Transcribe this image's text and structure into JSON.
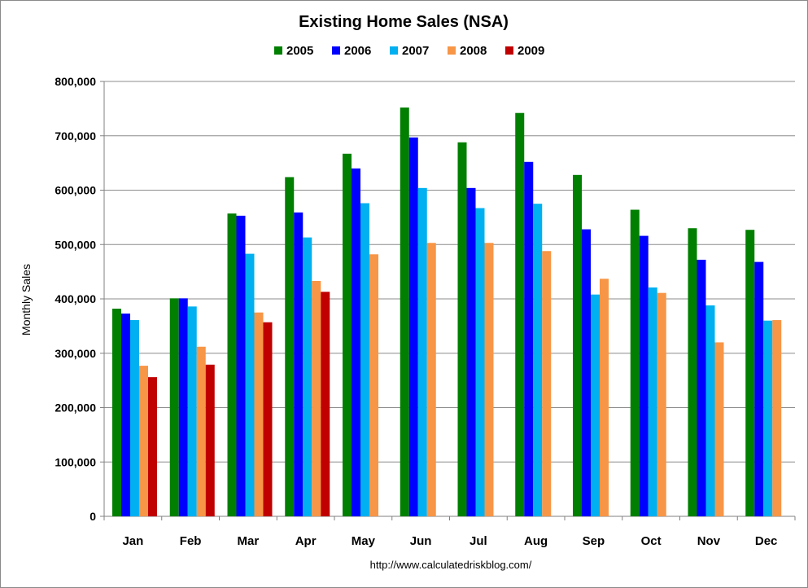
{
  "chart_data": {
    "type": "bar",
    "title": "Existing Home Sales (NSA)",
    "xlabel": "",
    "ylabel": "Monthly Sales",
    "ylim": [
      0,
      800000
    ],
    "yticks": [
      "0",
      "100,000",
      "200,000",
      "300,000",
      "400,000",
      "500,000",
      "600,000",
      "700,000",
      "800,000"
    ],
    "categories": [
      "Jan",
      "Feb",
      "Mar",
      "Apr",
      "May",
      "Jun",
      "Jul",
      "Aug",
      "Sep",
      "Oct",
      "Nov",
      "Dec"
    ],
    "grid": true,
    "legend": "top-center",
    "series": [
      {
        "name": "2005",
        "color": "#007f00",
        "values": [
          382000,
          401000,
          557000,
          624000,
          667000,
          752000,
          688000,
          742000,
          628000,
          564000,
          530000,
          527000
        ]
      },
      {
        "name": "2006",
        "color": "#0000ff",
        "values": [
          373000,
          401000,
          553000,
          559000,
          640000,
          697000,
          604000,
          652000,
          528000,
          516000,
          472000,
          468000
        ]
      },
      {
        "name": "2007",
        "color": "#00b0f0",
        "values": [
          361000,
          386000,
          483000,
          513000,
          576000,
          604000,
          567000,
          575000,
          408000,
          421000,
          388000,
          360000
        ]
      },
      {
        "name": "2008",
        "color": "#f79646",
        "values": [
          277000,
          312000,
          375000,
          433000,
          482000,
          503000,
          503000,
          488000,
          437000,
          411000,
          320000,
          361000
        ]
      },
      {
        "name": "2009",
        "color": "#c00000",
        "values": [
          256000,
          279000,
          357000,
          413000,
          null,
          null,
          null,
          null,
          null,
          null,
          null,
          null
        ]
      }
    ]
  },
  "footer": {
    "source": "http://www.calculatedriskblog.com/"
  }
}
